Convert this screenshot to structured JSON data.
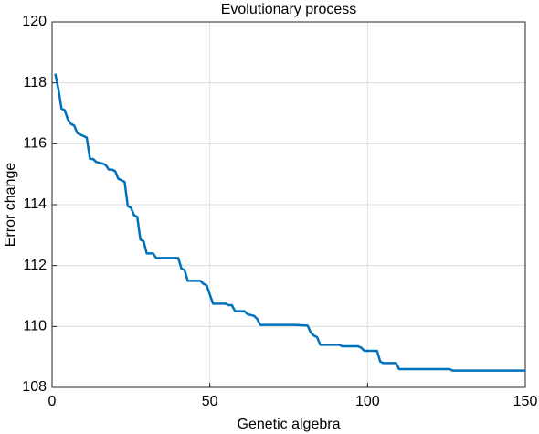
{
  "chart_data": {
    "type": "line",
    "title": "Evolutionary process",
    "x_label": "Genetic algebra",
    "y_label": "Error change",
    "xlim": [
      0,
      150
    ],
    "xticks": [
      0,
      50,
      100,
      150
    ],
    "ylim": [
      108,
      120
    ],
    "yticks": [
      108,
      110,
      112,
      114,
      116,
      118,
      120
    ],
    "grid": true,
    "series": [
      {
        "name": "Error change",
        "color": "#0072bd",
        "x": [
          1,
          2,
          3,
          4,
          5,
          6,
          7,
          8,
          9,
          11,
          12,
          13,
          14,
          16,
          17,
          18,
          19,
          20,
          21,
          23,
          24,
          25,
          26,
          27,
          28,
          29,
          30,
          32,
          33,
          40,
          41,
          42,
          43,
          47,
          48,
          49,
          50,
          51,
          55,
          56,
          57,
          58,
          61,
          62,
          64,
          65,
          66,
          77,
          81,
          82,
          83,
          84,
          85,
          91,
          92,
          97,
          98,
          99,
          103,
          104,
          105,
          109,
          110,
          126,
          127,
          150
        ],
        "values": [
          118.3,
          117.8,
          117.15,
          117.1,
          116.8,
          116.65,
          116.6,
          116.35,
          116.3,
          116.2,
          115.5,
          115.5,
          115.4,
          115.35,
          115.3,
          115.15,
          115.15,
          115.1,
          114.85,
          114.75,
          113.95,
          113.9,
          113.65,
          113.6,
          112.85,
          112.8,
          112.4,
          112.4,
          112.25,
          112.25,
          111.9,
          111.85,
          111.5,
          111.5,
          111.4,
          111.35,
          111.05,
          110.75,
          110.75,
          110.7,
          110.7,
          110.5,
          110.5,
          110.4,
          110.35,
          110.25,
          110.05,
          110.05,
          110.03,
          109.8,
          109.7,
          109.65,
          109.4,
          109.4,
          109.35,
          109.35,
          109.3,
          109.2,
          109.2,
          108.85,
          108.8,
          108.8,
          108.6,
          108.6,
          108.55,
          108.55
        ]
      }
    ]
  }
}
